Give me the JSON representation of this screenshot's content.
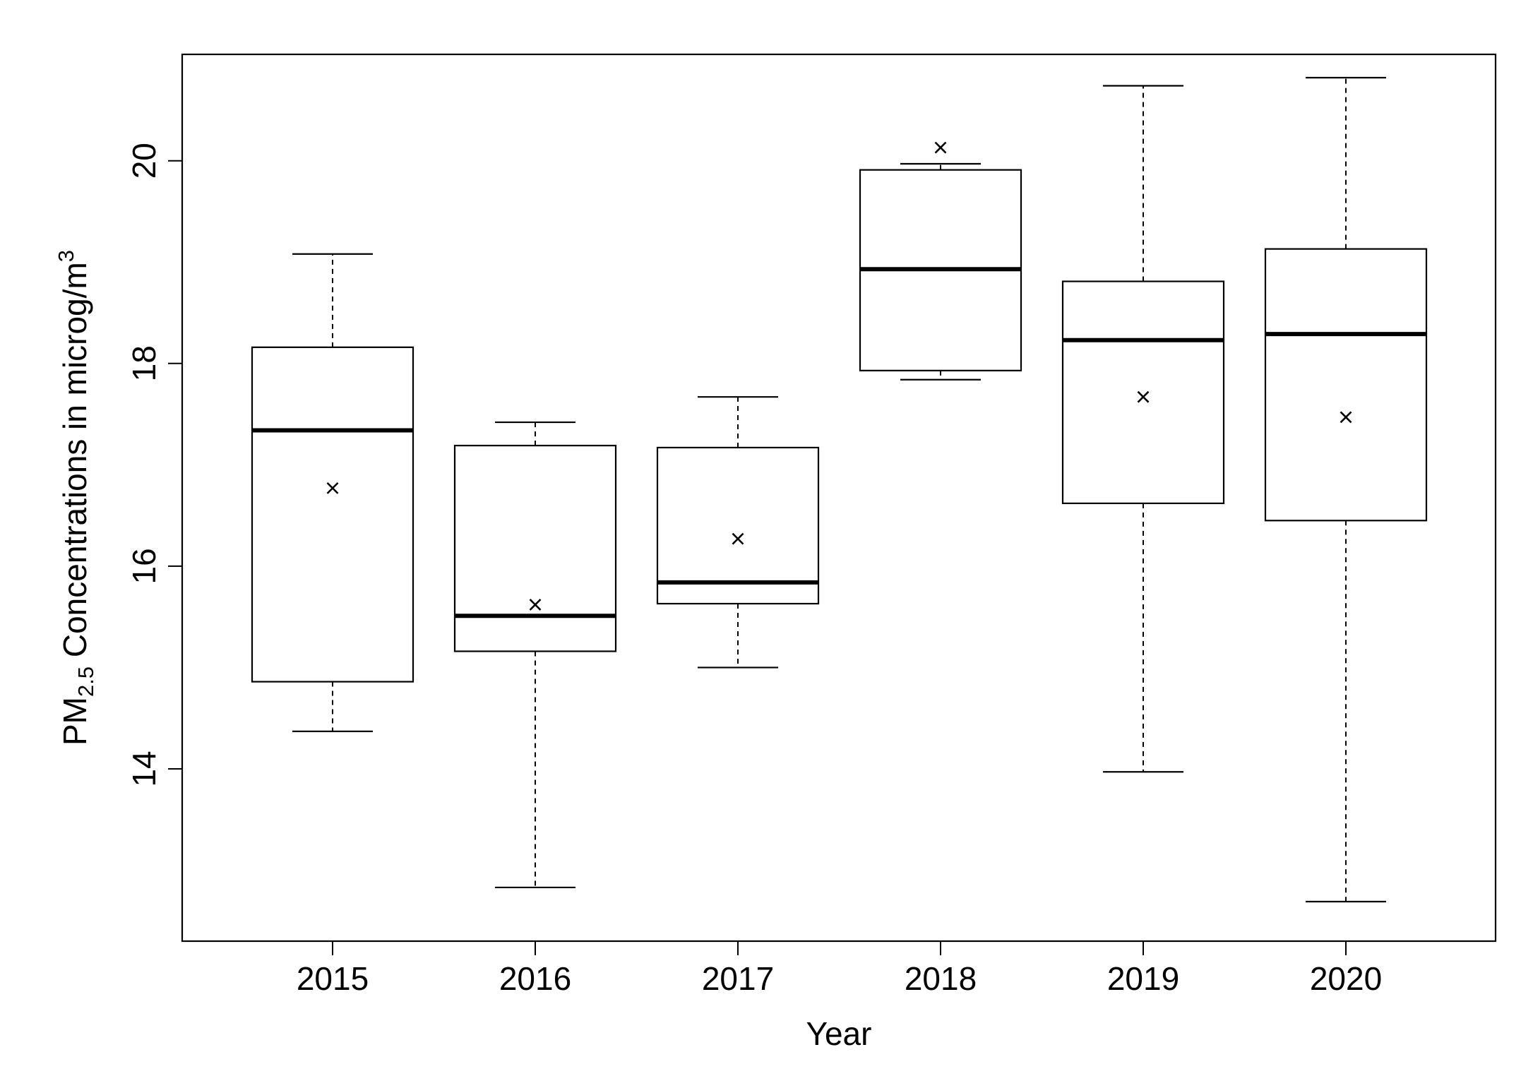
{
  "chart_data": {
    "type": "box",
    "xlabel": "Year",
    "ylabel": {
      "pre": "PM",
      "sub": "2.5",
      "mid": " Concentrations in microg/m",
      "sup": "3"
    },
    "ylim": [
      12.3,
      21.05
    ],
    "yticks": [
      14,
      16,
      18,
      20
    ],
    "ytick_labels": [
      "14",
      "16",
      "18",
      "20"
    ],
    "grid": false,
    "legend": "none",
    "categories": [
      "2015",
      "2016",
      "2017",
      "2018",
      "2019",
      "2020"
    ],
    "boxes": [
      {
        "category": "2015",
        "whisker_low": 14.37,
        "q1": 14.86,
        "median": 17.34,
        "q3": 18.16,
        "whisker_high": 19.08,
        "mean": 16.77
      },
      {
        "category": "2016",
        "whisker_low": 12.83,
        "q1": 15.16,
        "median": 15.51,
        "q3": 17.19,
        "whisker_high": 17.42,
        "mean": 15.62
      },
      {
        "category": "2017",
        "whisker_low": 15.0,
        "q1": 15.63,
        "median": 15.84,
        "q3": 17.17,
        "whisker_high": 17.67,
        "mean": 16.27
      },
      {
        "category": "2018",
        "whisker_low": 17.84,
        "q1": 17.93,
        "median": 18.93,
        "q3": 19.91,
        "whisker_high": 19.97,
        "mean": 20.13
      },
      {
        "category": "2019",
        "whisker_low": 13.97,
        "q1": 16.62,
        "median": 18.23,
        "q3": 18.81,
        "whisker_high": 20.74,
        "mean": 17.67
      },
      {
        "category": "2020",
        "whisker_low": 12.69,
        "q1": 16.45,
        "median": 18.29,
        "q3": 19.13,
        "whisker_high": 20.82,
        "mean": 17.47
      }
    ],
    "colors": {
      "stroke": "#000000",
      "background": "#ffffff"
    }
  }
}
